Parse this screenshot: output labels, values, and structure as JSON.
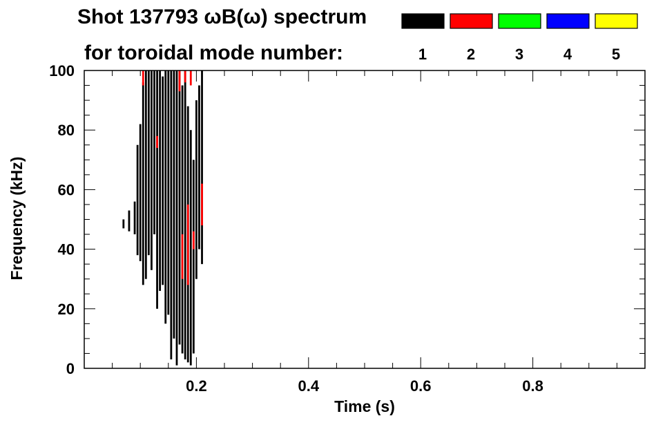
{
  "chart_data": {
    "type": "heatmap",
    "title_line1": "Shot 137793 ωB(ω) spectrum",
    "title_line2": "for toroidal mode number:",
    "xlabel": "Time (s)",
    "ylabel": "Frequency (kHz)",
    "xlim": [
      0.0,
      1.0
    ],
    "ylim": [
      0,
      100
    ],
    "x_ticks": [
      0.2,
      0.4,
      0.6,
      0.8
    ],
    "x_tick_labels": [
      "0.2",
      "0.4",
      "0.6",
      "0.8"
    ],
    "y_ticks": [
      0,
      20,
      40,
      60,
      80,
      100
    ],
    "y_tick_labels": [
      "0",
      "20",
      "40",
      "60",
      "80",
      "100"
    ],
    "legend": [
      {
        "label": "1",
        "color": "#000000"
      },
      {
        "label": "2",
        "color": "#ff0000"
      },
      {
        "label": "3",
        "color": "#00ff00"
      },
      {
        "label": "4",
        "color": "#0000ff"
      },
      {
        "label": "5",
        "color": "#ffff00"
      }
    ],
    "mode_activity": [
      {
        "mode": "1",
        "t": 0.07,
        "f": [
          47,
          50
        ]
      },
      {
        "mode": "1",
        "t": 0.08,
        "f": [
          46,
          53
        ]
      },
      {
        "mode": "1",
        "t": 0.09,
        "f": [
          45,
          56
        ]
      },
      {
        "mode": "1",
        "t": 0.095,
        "f": [
          38,
          75
        ]
      },
      {
        "mode": "1",
        "t": 0.1,
        "f": [
          36,
          82
        ]
      },
      {
        "mode": "1",
        "t": 0.105,
        "f": [
          28,
          96
        ]
      },
      {
        "mode": "1",
        "t": 0.11,
        "f": [
          30,
          100
        ]
      },
      {
        "mode": "1",
        "t": 0.115,
        "f": [
          38,
          100
        ]
      },
      {
        "mode": "1",
        "t": 0.12,
        "f": [
          33,
          100
        ]
      },
      {
        "mode": "1",
        "t": 0.125,
        "f": [
          45,
          100
        ]
      },
      {
        "mode": "1",
        "t": 0.13,
        "f": [
          20,
          100
        ]
      },
      {
        "mode": "1",
        "t": 0.135,
        "f": [
          26,
          100
        ]
      },
      {
        "mode": "1",
        "t": 0.14,
        "f": [
          28,
          98
        ]
      },
      {
        "mode": "1",
        "t": 0.145,
        "f": [
          15,
          100
        ]
      },
      {
        "mode": "1",
        "t": 0.15,
        "f": [
          18,
          100
        ]
      },
      {
        "mode": "1",
        "t": 0.155,
        "f": [
          3,
          100
        ]
      },
      {
        "mode": "1",
        "t": 0.16,
        "f": [
          10,
          100
        ]
      },
      {
        "mode": "1",
        "t": 0.165,
        "f": [
          1,
          100
        ]
      },
      {
        "mode": "1",
        "t": 0.17,
        "f": [
          8,
          100
        ]
      },
      {
        "mode": "1",
        "t": 0.175,
        "f": [
          5,
          95
        ]
      },
      {
        "mode": "1",
        "t": 0.18,
        "f": [
          3,
          100
        ]
      },
      {
        "mode": "1",
        "t": 0.185,
        "f": [
          2,
          88
        ]
      },
      {
        "mode": "1",
        "t": 0.19,
        "f": [
          1,
          80
        ]
      },
      {
        "mode": "1",
        "t": 0.195,
        "f": [
          5,
          70
        ]
      },
      {
        "mode": "1",
        "t": 0.2,
        "f": [
          30,
          90
        ]
      },
      {
        "mode": "1",
        "t": 0.205,
        "f": [
          40,
          95
        ]
      },
      {
        "mode": "1",
        "t": 0.21,
        "f": [
          35,
          100
        ]
      },
      {
        "mode": "2",
        "t": 0.105,
        "f": [
          95,
          100
        ]
      },
      {
        "mode": "2",
        "t": 0.13,
        "f": [
          74,
          78
        ]
      },
      {
        "mode": "2",
        "t": 0.17,
        "f": [
          93,
          100
        ]
      },
      {
        "mode": "2",
        "t": 0.175,
        "f": [
          30,
          45
        ]
      },
      {
        "mode": "2",
        "t": 0.18,
        "f": [
          96,
          100
        ]
      },
      {
        "mode": "2",
        "t": 0.185,
        "f": [
          28,
          55
        ]
      },
      {
        "mode": "2",
        "t": 0.19,
        "f": [
          95,
          100
        ]
      },
      {
        "mode": "2",
        "t": 0.195,
        "f": [
          40,
          46
        ]
      },
      {
        "mode": "2",
        "t": 0.21,
        "f": [
          48,
          62
        ]
      }
    ]
  }
}
